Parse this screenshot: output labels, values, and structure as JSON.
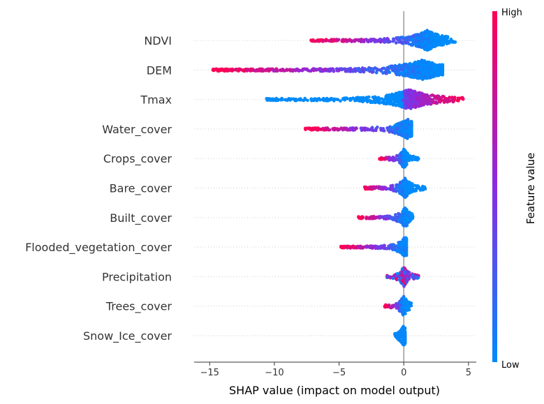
{
  "chart_data": {
    "type": "scatter",
    "subtype": "shap-beeswarm",
    "title": "",
    "xlabel": "SHAP value (impact on model output)",
    "ylabel": "",
    "xlim": [
      -16.2,
      5.6
    ],
    "x_ticks": [
      -15,
      -10,
      -5,
      0,
      5
    ],
    "zero_line": true,
    "features": [
      {
        "name": "NDVI",
        "min": -7.3,
        "max": 4.0,
        "center": 1.8,
        "high_side": "left"
      },
      {
        "name": "DEM",
        "min": -14.8,
        "max": 3.0,
        "center": 1.4,
        "high_side": "left"
      },
      {
        "name": "Tmax",
        "min": -10.6,
        "max": 4.7,
        "center": 0.4,
        "high_side": "right"
      },
      {
        "name": "Water_cover",
        "min": -7.7,
        "max": 0.6,
        "center": 0.3,
        "high_side": "left"
      },
      {
        "name": "Crops_cover",
        "min": -1.9,
        "max": 1.2,
        "center": 0.0,
        "high_side": "left"
      },
      {
        "name": "Bare_cover",
        "min": -3.1,
        "max": 1.7,
        "center": 0.1,
        "high_side": "left"
      },
      {
        "name": "Built_cover",
        "min": -3.5,
        "max": 0.7,
        "center": 0.1,
        "high_side": "left"
      },
      {
        "name": "Flooded_vegetation_cover",
        "min": -4.9,
        "max": 0.2,
        "center": 0.1,
        "high_side": "left"
      },
      {
        "name": "Precipitation",
        "min": -1.3,
        "max": 1.2,
        "center": 0.0,
        "high_side": "mixed"
      },
      {
        "name": "Trees_cover",
        "min": -1.5,
        "max": 0.6,
        "center": 0.0,
        "high_side": "left"
      },
      {
        "name": "Snow_Ice_cover",
        "min": -0.7,
        "max": 0.1,
        "center": 0.0,
        "high_side": "none"
      }
    ],
    "colorbar": {
      "label": "Feature value",
      "high_label": "High",
      "low_label": "Low",
      "high_color": "#ff0052",
      "low_color": "#008bfb",
      "mid_color": "#8a2be2"
    },
    "grid": false,
    "legend": "right"
  }
}
